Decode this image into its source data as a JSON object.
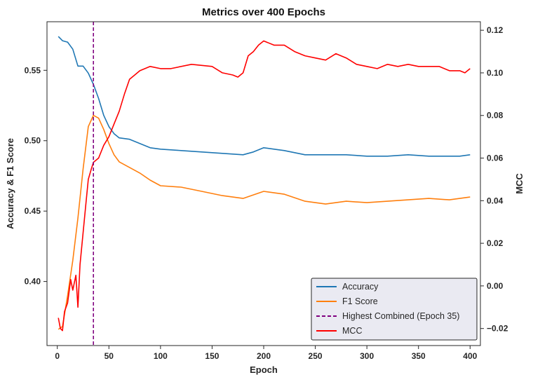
{
  "chart_data": {
    "type": "line",
    "title": "Metrics over 400 Epochs",
    "xlabel": "Epoch",
    "ylabel_left": "Accuracy & F1 Score",
    "ylabel_right": "MCC",
    "xlim": [
      -10,
      410
    ],
    "ylim_left": [
      0.3545,
      0.5845
    ],
    "ylim_right": [
      -0.028,
      0.124
    ],
    "x_ticks": [
      0,
      50,
      100,
      150,
      200,
      250,
      300,
      350,
      400
    ],
    "y_left_ticks": [
      0.4,
      0.45,
      0.5,
      0.55
    ],
    "y_left_tick_labels": [
      "0.40",
      "0.45",
      "0.50",
      "0.55"
    ],
    "y_right_ticks": [
      -0.02,
      0.0,
      0.02,
      0.04,
      0.06,
      0.08,
      0.1,
      0.12
    ],
    "y_right_tick_labels": [
      "−0.02",
      "0.00",
      "0.02",
      "0.04",
      "0.06",
      "0.08",
      "0.10",
      "0.12"
    ],
    "grid": false,
    "legend_position": "lower-right",
    "vline": {
      "x": 35,
      "name": "Highest Combined (Epoch 35)",
      "color": "#800080"
    },
    "series": [
      {
        "name": "Accuracy",
        "axis": "left",
        "color": "#1f77b4",
        "x": [
          1,
          5,
          10,
          15,
          20,
          25,
          30,
          35,
          40,
          45,
          50,
          55,
          60,
          70,
          80,
          90,
          100,
          120,
          140,
          160,
          180,
          190,
          200,
          210,
          220,
          240,
          260,
          280,
          300,
          320,
          340,
          360,
          380,
          390,
          400
        ],
        "values": [
          0.574,
          0.571,
          0.57,
          0.565,
          0.553,
          0.553,
          0.548,
          0.54,
          0.53,
          0.518,
          0.51,
          0.505,
          0.502,
          0.501,
          0.498,
          0.495,
          0.494,
          0.493,
          0.492,
          0.491,
          0.49,
          0.492,
          0.495,
          0.494,
          0.493,
          0.49,
          0.49,
          0.49,
          0.489,
          0.489,
          0.49,
          0.489,
          0.489,
          0.489,
          0.49
        ]
      },
      {
        "name": "F1 Score",
        "axis": "left",
        "color": "#ff7f0e",
        "x": [
          1,
          5,
          10,
          15,
          20,
          25,
          30,
          35,
          40,
          45,
          50,
          55,
          60,
          70,
          80,
          90,
          100,
          120,
          140,
          160,
          180,
          200,
          220,
          240,
          260,
          280,
          300,
          320,
          340,
          360,
          380,
          390,
          400
        ],
        "values": [
          0.366,
          0.368,
          0.39,
          0.415,
          0.445,
          0.48,
          0.51,
          0.518,
          0.516,
          0.508,
          0.498,
          0.49,
          0.485,
          0.481,
          0.477,
          0.472,
          0.468,
          0.467,
          0.464,
          0.461,
          0.459,
          0.464,
          0.462,
          0.457,
          0.455,
          0.457,
          0.456,
          0.457,
          0.458,
          0.459,
          0.458,
          0.459,
          0.46
        ]
      },
      {
        "name": "MCC",
        "axis": "right",
        "color": "#ff0000",
        "x": [
          1,
          3,
          5,
          7,
          10,
          13,
          15,
          18,
          20,
          22,
          25,
          28,
          30,
          33,
          35,
          40,
          45,
          50,
          55,
          60,
          65,
          70,
          75,
          80,
          90,
          100,
          110,
          130,
          150,
          160,
          170,
          175,
          180,
          185,
          190,
          195,
          200,
          210,
          220,
          230,
          240,
          250,
          260,
          270,
          280,
          290,
          300,
          310,
          320,
          330,
          340,
          350,
          360,
          370,
          380,
          390,
          395,
          400
        ],
        "values": [
          -0.015,
          -0.02,
          -0.021,
          -0.012,
          -0.008,
          0.003,
          -0.002,
          0.005,
          -0.01,
          0.01,
          0.025,
          0.04,
          0.05,
          0.055,
          0.058,
          0.06,
          0.066,
          0.07,
          0.076,
          0.082,
          0.09,
          0.097,
          0.099,
          0.101,
          0.103,
          0.102,
          0.102,
          0.104,
          0.103,
          0.1,
          0.099,
          0.098,
          0.1,
          0.108,
          0.11,
          0.113,
          0.115,
          0.113,
          0.113,
          0.11,
          0.108,
          0.107,
          0.106,
          0.109,
          0.107,
          0.104,
          0.103,
          0.102,
          0.104,
          0.103,
          0.104,
          0.103,
          0.103,
          0.103,
          0.101,
          0.101,
          0.1,
          0.102
        ]
      }
    ]
  }
}
